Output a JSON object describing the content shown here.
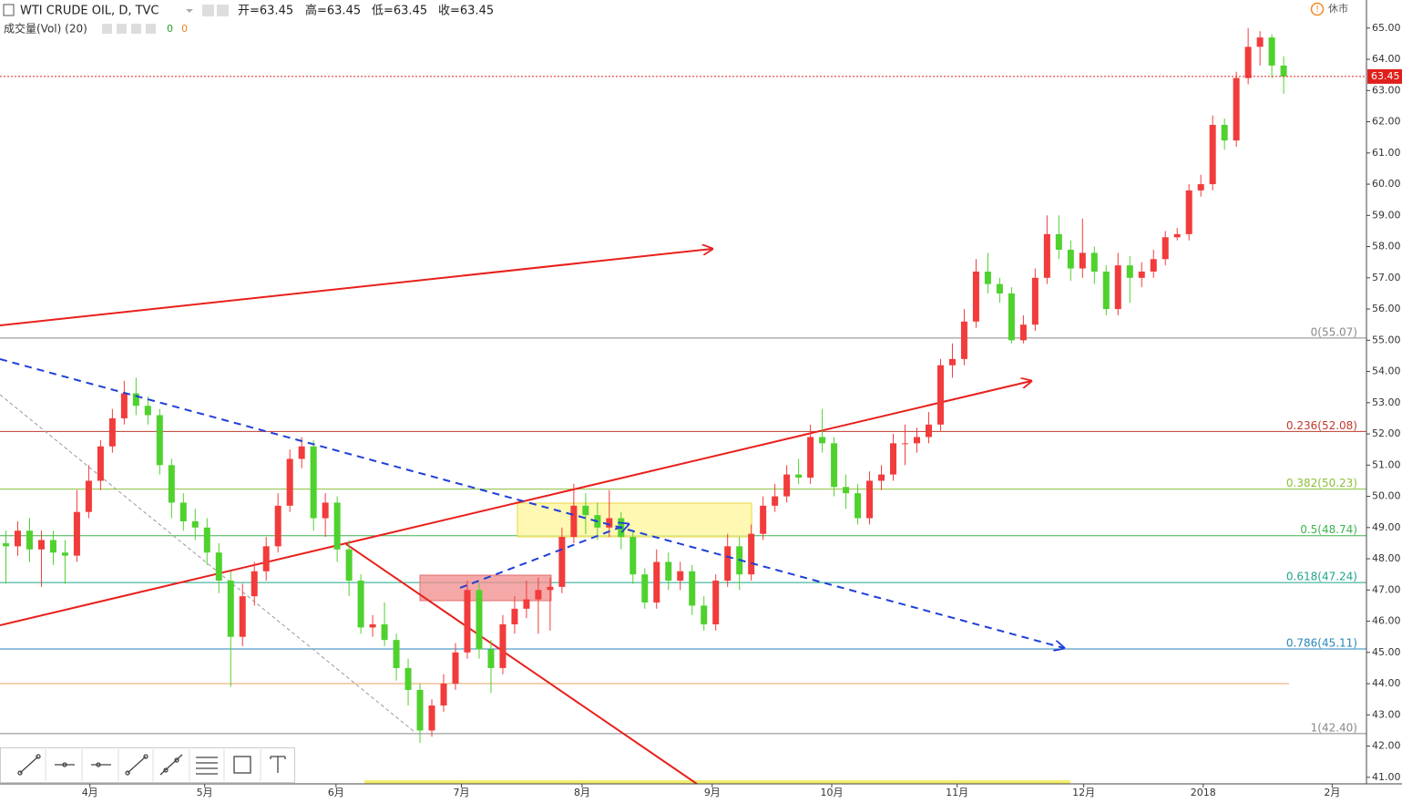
{
  "header": {
    "title": "WTI CRUDE OIL, D, TVC",
    "ohlc_display": [
      "开=63.45",
      "高=63.45",
      "低=63.45",
      "收=63.45"
    ],
    "volume_label": "成交量(Vol) (20)",
    "volume_values": [
      "0",
      "0"
    ],
    "status": "休市"
  },
  "chart_data": {
    "type": "candlestick",
    "up_color": "#f23b3b",
    "down_color": "#4fd12e",
    "ylim": [
      40.79,
      65.9
    ],
    "yticks": [
      {
        "value": 41,
        "label": "41.00"
      },
      {
        "value": 42,
        "label": "42.00"
      },
      {
        "value": 43,
        "label": "43.00"
      },
      {
        "value": 44,
        "label": "44.00"
      },
      {
        "value": 45,
        "label": "45.00"
      },
      {
        "value": 46,
        "label": "46.00"
      },
      {
        "value": 47,
        "label": "47.00"
      },
      {
        "value": 48,
        "label": "48.00"
      },
      {
        "value": 49,
        "label": "49.00"
      },
      {
        "value": 50,
        "label": "50.00"
      },
      {
        "value": 51,
        "label": "51.00"
      },
      {
        "value": 52,
        "label": "52.00"
      },
      {
        "value": 53,
        "label": "53.00"
      },
      {
        "value": 54,
        "label": "54.00"
      },
      {
        "value": 55,
        "label": "55.00"
      },
      {
        "value": 56,
        "label": "56.00"
      },
      {
        "value": 57,
        "label": "57.00"
      },
      {
        "value": 58,
        "label": "58.00"
      },
      {
        "value": 59,
        "label": "59.00"
      },
      {
        "value": 60,
        "label": "60.00"
      },
      {
        "value": 61,
        "label": "61.00"
      },
      {
        "value": 62,
        "label": "62.00"
      },
      {
        "value": 63,
        "label": "63.00"
      },
      {
        "value": 64,
        "label": "64.00"
      },
      {
        "value": 65,
        "label": "65.00"
      }
    ],
    "xlim": [
      -0.5,
      115
    ],
    "xticks": [
      {
        "value": 7.1,
        "label": "4月"
      },
      {
        "value": 16.8,
        "label": "5月"
      },
      {
        "value": 27.9,
        "label": "6月"
      },
      {
        "value": 38.5,
        "label": "7月"
      },
      {
        "value": 48.7,
        "label": "8月"
      },
      {
        "value": 59.7,
        "label": "9月"
      },
      {
        "value": 69.8,
        "label": "10月"
      },
      {
        "value": 80.4,
        "label": "11月"
      },
      {
        "value": 91.1,
        "label": "12月"
      },
      {
        "value": 101.2,
        "label": "2018"
      },
      {
        "value": 112.1,
        "label": "2月"
      }
    ],
    "last_price": 63.45,
    "last_price_color": "#e0201c",
    "fib_levels": [
      {
        "label": "0(55.07)",
        "value": 55.07,
        "color": "#888888"
      },
      {
        "label": "0.236(52.08)",
        "value": 52.08,
        "color": "#c0392b"
      },
      {
        "label": "0.382(50.23)",
        "value": 50.23,
        "color": "#8bbf3a"
      },
      {
        "label": "0.5(48.74)",
        "value": 48.74,
        "color": "#3fb34f"
      },
      {
        "label": "0.618(47.24)",
        "value": 47.24,
        "color": "#1fa58a"
      },
      {
        "label": "0.786(45.11)",
        "value": 45.11,
        "color": "#2a86b8"
      },
      {
        "label": "1(42.40)",
        "value": 42.4,
        "color": "#888888"
      }
    ],
    "extra_levels": [
      {
        "value": 44.0,
        "color": "#e8a060"
      }
    ],
    "ohlc": [
      [
        48.5,
        48.9,
        47.2,
        48.4
      ],
      [
        48.4,
        49.2,
        48.1,
        48.9
      ],
      [
        48.9,
        49.3,
        47.9,
        48.3
      ],
      [
        48.3,
        48.9,
        47.1,
        48.6
      ],
      [
        48.6,
        48.9,
        47.8,
        48.2
      ],
      [
        48.2,
        48.6,
        47.2,
        48.1
      ],
      [
        48.1,
        50.2,
        47.9,
        49.5
      ],
      [
        49.5,
        51.0,
        49.3,
        50.5
      ],
      [
        50.5,
        51.8,
        50.2,
        51.6
      ],
      [
        51.6,
        52.8,
        51.4,
        52.5
      ],
      [
        52.5,
        53.7,
        52.3,
        53.3
      ],
      [
        53.3,
        53.8,
        52.6,
        52.9
      ],
      [
        52.9,
        53.2,
        52.3,
        52.6
      ],
      [
        52.6,
        52.8,
        50.7,
        51.0
      ],
      [
        51.0,
        51.2,
        49.3,
        49.8
      ],
      [
        49.8,
        50.1,
        48.9,
        49.2
      ],
      [
        49.2,
        49.6,
        48.6,
        49.0
      ],
      [
        49.0,
        49.3,
        47.8,
        48.2
      ],
      [
        48.2,
        48.5,
        46.9,
        47.3
      ],
      [
        47.3,
        47.6,
        43.9,
        45.5
      ],
      [
        45.5,
        47.2,
        45.2,
        46.8
      ],
      [
        46.8,
        47.9,
        46.5,
        47.6
      ],
      [
        47.6,
        48.7,
        47.3,
        48.4
      ],
      [
        48.4,
        50.1,
        48.2,
        49.7
      ],
      [
        49.7,
        51.5,
        49.5,
        51.2
      ],
      [
        51.2,
        51.9,
        50.9,
        51.6
      ],
      [
        51.6,
        51.8,
        48.9,
        49.3
      ],
      [
        49.3,
        50.1,
        48.7,
        49.8
      ],
      [
        49.8,
        50.0,
        47.9,
        48.3
      ],
      [
        48.3,
        48.6,
        46.8,
        47.3
      ],
      [
        47.3,
        47.5,
        45.6,
        45.8
      ],
      [
        45.8,
        46.2,
        45.5,
        45.9
      ],
      [
        45.9,
        46.6,
        45.2,
        45.4
      ],
      [
        45.4,
        45.6,
        44.1,
        44.5
      ],
      [
        44.5,
        44.8,
        43.3,
        43.8
      ],
      [
        43.8,
        44.0,
        42.1,
        42.5
      ],
      [
        42.5,
        43.5,
        42.3,
        43.3
      ],
      [
        43.3,
        44.3,
        43.1,
        44.0
      ],
      [
        44.0,
        45.3,
        43.8,
        45.0
      ],
      [
        45.0,
        47.3,
        44.8,
        47.0
      ],
      [
        47.0,
        47.2,
        44.8,
        45.1
      ],
      [
        45.1,
        45.4,
        43.7,
        44.5
      ],
      [
        44.5,
        46.2,
        44.3,
        45.9
      ],
      [
        45.9,
        46.8,
        45.6,
        46.4
      ],
      [
        46.4,
        47.3,
        46.1,
        46.7
      ],
      [
        46.7,
        47.4,
        45.6,
        47.0
      ],
      [
        47.0,
        47.4,
        45.7,
        47.1
      ],
      [
        47.1,
        49.0,
        46.9,
        48.7
      ],
      [
        48.7,
        50.4,
        48.5,
        49.7
      ],
      [
        49.7,
        50.1,
        48.8,
        49.4
      ],
      [
        49.4,
        49.8,
        48.6,
        49.0
      ],
      [
        49.0,
        50.2,
        48.7,
        49.3
      ],
      [
        49.3,
        49.5,
        48.3,
        48.7
      ],
      [
        48.7,
        48.9,
        47.2,
        47.5
      ],
      [
        47.5,
        47.7,
        46.4,
        46.6
      ],
      [
        46.6,
        48.3,
        46.4,
        47.9
      ],
      [
        47.9,
        48.2,
        47.0,
        47.3
      ],
      [
        47.3,
        47.9,
        47.0,
        47.6
      ],
      [
        47.6,
        47.8,
        46.2,
        46.5
      ],
      [
        46.5,
        46.8,
        45.7,
        45.9
      ],
      [
        45.9,
        47.5,
        45.7,
        47.3
      ],
      [
        47.3,
        48.8,
        47.1,
        48.4
      ],
      [
        48.4,
        48.7,
        47.0,
        47.5
      ],
      [
        47.5,
        49.1,
        47.3,
        48.8
      ],
      [
        48.8,
        50.0,
        48.6,
        49.7
      ],
      [
        49.7,
        50.4,
        49.5,
        50.0
      ],
      [
        50.0,
        51.0,
        49.8,
        50.7
      ],
      [
        50.7,
        51.2,
        50.4,
        50.6
      ],
      [
        50.6,
        52.3,
        50.4,
        51.9
      ],
      [
        51.9,
        52.8,
        51.4,
        51.7
      ],
      [
        51.7,
        51.9,
        50.0,
        50.3
      ],
      [
        50.3,
        50.7,
        49.6,
        50.1
      ],
      [
        50.1,
        50.4,
        49.1,
        49.3
      ],
      [
        49.3,
        50.8,
        49.1,
        50.5
      ],
      [
        50.5,
        51.0,
        50.2,
        50.7
      ],
      [
        50.7,
        52.0,
        50.5,
        51.7
      ],
      [
        51.7,
        52.3,
        51.0,
        51.7
      ],
      [
        51.7,
        52.2,
        51.4,
        51.9
      ],
      [
        51.9,
        52.7,
        51.7,
        52.3
      ],
      [
        52.3,
        54.4,
        52.1,
        54.2
      ],
      [
        54.2,
        54.9,
        53.8,
        54.4
      ],
      [
        54.4,
        56.0,
        54.2,
        55.6
      ],
      [
        55.6,
        57.6,
        55.4,
        57.2
      ],
      [
        57.2,
        57.8,
        56.5,
        56.8
      ],
      [
        56.8,
        57.0,
        56.2,
        56.5
      ],
      [
        56.5,
        56.7,
        54.9,
        55.0
      ],
      [
        55.0,
        55.8,
        54.9,
        55.5
      ],
      [
        55.5,
        57.3,
        55.3,
        57.0
      ],
      [
        57.0,
        59.0,
        56.8,
        58.4
      ],
      [
        58.4,
        59.0,
        57.6,
        57.9
      ],
      [
        57.9,
        58.2,
        56.9,
        57.3
      ],
      [
        57.3,
        58.9,
        57.0,
        57.8
      ],
      [
        57.8,
        58.0,
        56.8,
        57.2
      ],
      [
        57.2,
        57.4,
        55.8,
        56.0
      ],
      [
        56.0,
        57.8,
        55.8,
        57.4
      ],
      [
        57.4,
        57.7,
        56.2,
        57.0
      ],
      [
        57.0,
        57.5,
        56.7,
        57.2
      ],
      [
        57.2,
        57.9,
        57.0,
        57.6
      ],
      [
        57.6,
        58.5,
        57.4,
        58.3
      ],
      [
        58.3,
        58.6,
        58.2,
        58.4
      ],
      [
        58.4,
        60.0,
        58.2,
        59.8
      ],
      [
        59.8,
        60.3,
        59.6,
        60.0
      ],
      [
        60.0,
        62.2,
        59.8,
        61.9
      ],
      [
        61.9,
        62.1,
        61.1,
        61.4
      ],
      [
        61.4,
        63.6,
        61.2,
        63.4
      ],
      [
        63.4,
        65.0,
        63.2,
        64.4
      ],
      [
        64.4,
        64.9,
        63.8,
        64.7
      ],
      [
        64.7,
        64.8,
        63.4,
        63.8
      ],
      [
        63.8,
        64.1,
        62.9,
        63.45
      ]
    ]
  }
}
